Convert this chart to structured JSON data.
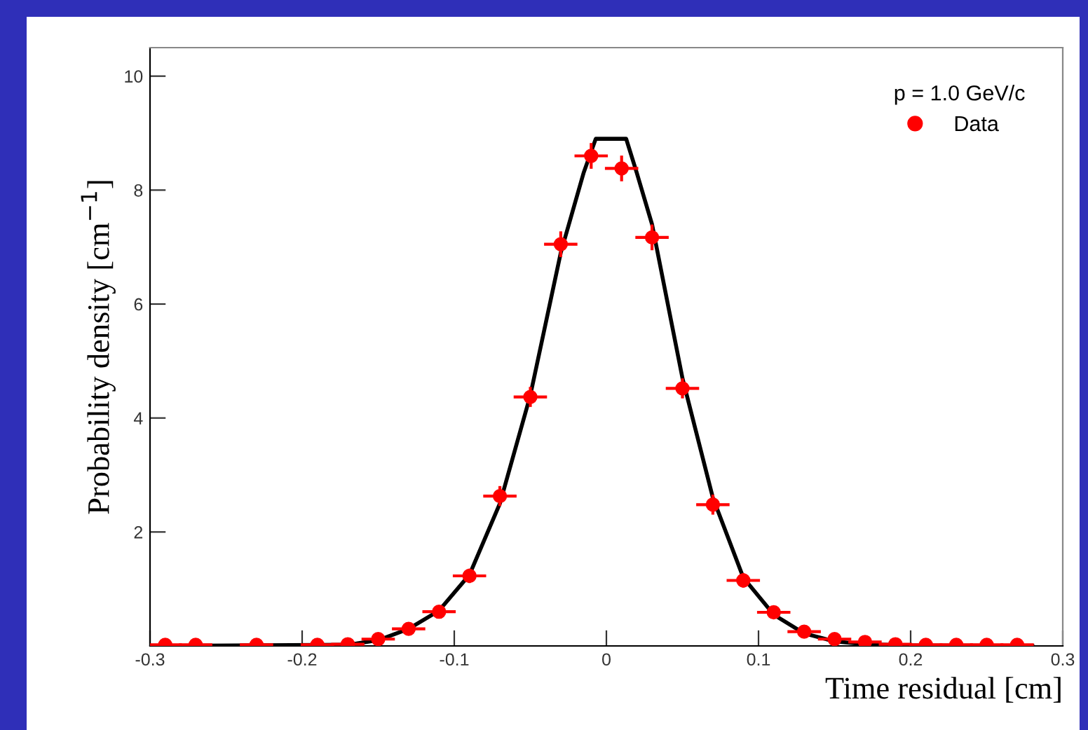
{
  "chart_data": {
    "type": "scatter",
    "xlabel": "Time residual [cm]",
    "ylabel": "Probability density [cm$^{−1}$]",
    "legend_title": "p = 1.0 GeV/c",
    "xlim": [
      -0.3,
      0.3
    ],
    "ylim": [
      0,
      10.5
    ],
    "xticks": [
      -0.3,
      -0.2,
      -0.1,
      0,
      0.1,
      0.2,
      0.3
    ],
    "yticks": [
      2,
      4,
      6,
      8,
      10
    ],
    "grid": false,
    "legend": "top right",
    "series": [
      {
        "name": "Data",
        "color": "#ff0000",
        "marker": "circle",
        "x": [
          -0.29,
          -0.27,
          -0.23,
          -0.19,
          -0.17,
          -0.15,
          -0.13,
          -0.11,
          -0.09,
          -0.07,
          -0.05,
          -0.03,
          -0.01,
          0.01,
          0.03,
          0.05,
          0.07,
          0.09,
          0.11,
          0.13,
          0.15,
          0.17,
          0.19,
          0.21,
          0.23,
          0.25,
          0.27
        ],
        "values": [
          0.02,
          0.02,
          0.02,
          0.02,
          0.03,
          0.12,
          0.3,
          0.6,
          1.23,
          2.63,
          4.37,
          7.05,
          8.6,
          8.38,
          7.17,
          4.52,
          2.48,
          1.15,
          0.59,
          0.25,
          0.12,
          0.07,
          0.03,
          0.02,
          0.02,
          0.02,
          0.02
        ],
        "xerrors": [
          0.01,
          0.01,
          0.01,
          0.01,
          0.01,
          0.01,
          0.01,
          0.01,
          0.01,
          0.01,
          0.01,
          0.01,
          0.01,
          0.01,
          0.01,
          0.01,
          0.01,
          0.01,
          0.01,
          0.01,
          0.01,
          0.01,
          0.01,
          0.01,
          0.01,
          0.01,
          0.01
        ],
        "errors": [
          null,
          null,
          null,
          null,
          null,
          null,
          null,
          null,
          0.1,
          0.15,
          0.15,
          0.2,
          0.2,
          0.2,
          0.2,
          0.15,
          0.15,
          0.1,
          null,
          null,
          null,
          null,
          null,
          null,
          null,
          null,
          null
        ]
      },
      {
        "type": "line",
        "color": "#000000",
        "line_style": "solid",
        "marker": "none",
        "x": [
          -0.3,
          -0.17,
          -0.15,
          -0.13,
          -0.11,
          -0.09,
          -0.07,
          -0.05,
          -0.03,
          -0.015,
          -0.007,
          0.013,
          0.02,
          0.03,
          0.05,
          0.07,
          0.09,
          0.11,
          0.13,
          0.15,
          0.17,
          0.2,
          0.28
        ],
        "values": [
          0,
          0.02,
          0.1,
          0.3,
          0.62,
          1.25,
          2.5,
          4.4,
          6.9,
          8.3,
          8.9,
          8.9,
          8.3,
          7.4,
          4.7,
          2.6,
          1.2,
          0.55,
          0.22,
          0.08,
          0.03,
          0.01,
          0
        ]
      }
    ]
  }
}
